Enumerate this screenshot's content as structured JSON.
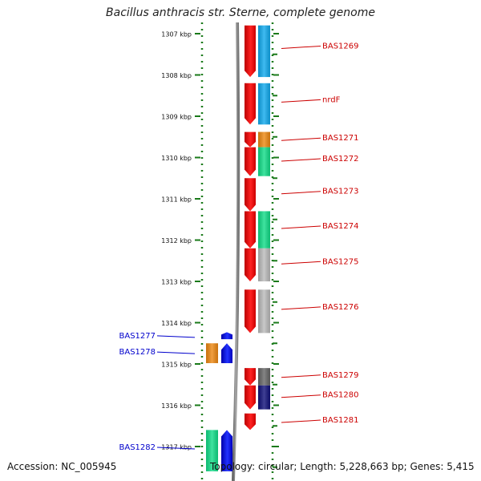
{
  "title": "Bacillus anthracis str. Sterne, complete genome",
  "footer": {
    "accession": "Accession: NC_005945",
    "summary": "Topology: circular; Length: 5,228,663 bp; Genes: 5,415"
  },
  "ruler": {
    "unit": "kbp",
    "ticks": [
      1307,
      1308,
      1309,
      1310,
      1311,
      1312,
      1313,
      1314,
      1315,
      1316,
      1317
    ]
  },
  "colors": {
    "ruler": "#1a7a1a",
    "forward_label": "#cc0000",
    "reverse_label": "#0000cc",
    "cds": "#ee1111",
    "backbone": "#888888"
  },
  "genes": [
    {
      "name": "BAS1269",
      "strand": "+",
      "start": 1306.8,
      "end": 1308.05,
      "cat_color": "#11aaee"
    },
    {
      "name": "nrdF",
      "strand": "+",
      "start": 1308.2,
      "end": 1309.2,
      "cat_color": "#11aaee"
    },
    {
      "name": "BAS1271",
      "strand": "+",
      "start": 1309.38,
      "end": 1309.75,
      "cat_color": "#ee8811"
    },
    {
      "name": "BAS1272",
      "strand": "+",
      "start": 1309.75,
      "end": 1310.45,
      "cat_color": "#11dd88"
    },
    {
      "name": "BAS1273",
      "strand": "+",
      "start": 1310.5,
      "end": 1311.3,
      "cat_color": ""
    },
    {
      "name": "BAS1274",
      "strand": "+",
      "start": 1311.3,
      "end": 1312.2,
      "cat_color": "#11dd88"
    },
    {
      "name": "BAS1275",
      "strand": "+",
      "start": 1312.2,
      "end": 1313.0,
      "cat_color": "#bbbbbb"
    },
    {
      "name": "BAS1276",
      "strand": "+",
      "start": 1313.2,
      "end": 1314.25,
      "cat_color": "#bbbbbb"
    },
    {
      "name": "BAS1277",
      "strand": "-",
      "start": 1314.23,
      "end": 1314.4,
      "cat_color": ""
    },
    {
      "name": "BAS1278",
      "strand": "-",
      "start": 1314.5,
      "end": 1314.98,
      "cat_color": "#ee8811"
    },
    {
      "name": "BAS1279",
      "strand": "+",
      "start": 1315.1,
      "end": 1315.52,
      "cat_color": "#666666"
    },
    {
      "name": "BAS1280",
      "strand": "+",
      "start": 1315.52,
      "end": 1316.1,
      "cat_color": "#11117a"
    },
    {
      "name": "BAS1281",
      "strand": "+",
      "start": 1316.2,
      "end": 1316.6,
      "cat_color": ""
    },
    {
      "name": "BAS1282",
      "strand": "-",
      "start": 1316.6,
      "end": 1317.6,
      "cat_color": "#11dd88"
    }
  ]
}
